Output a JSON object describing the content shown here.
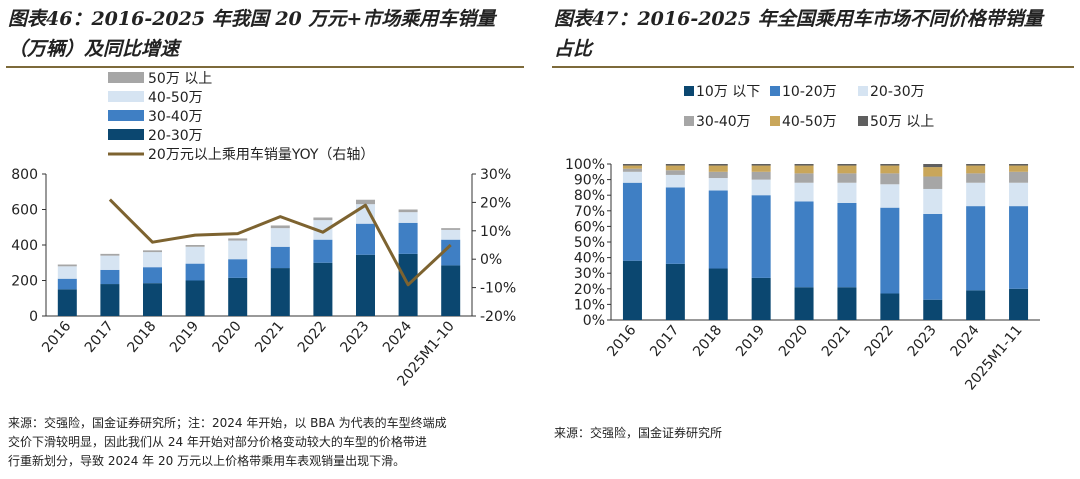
{
  "left_panel": {
    "title_line1": "图表46：2016-2025 年我国 20 万元+市场乘用车销量",
    "title_line2": "（万辆）及同比增速",
    "source_line1": "来源：交强险，国金证券研究所；注：2024 年开始，以 BBA 为代表的车型终端成",
    "source_line2": "交价下滑较明显，因此我们从 24 年开始对部分价格变动较大的车型的价格带进",
    "source_line3": "行重新划分，导致 2024 年 20 万元以上价格带乘用车表观销量出现下滑。"
  },
  "right_panel": {
    "title_line1": "图表47：2016-2025 年全国乘用车市场不同价格带销量",
    "title_line2": "占比",
    "source": "来源：交强险，国金证券研究所"
  },
  "colors": {
    "band_50_plus": "#a6a6a6",
    "band_40_50": "#d6e4f2",
    "band_30_40": "#3f7fc4",
    "band_20_30": "#0b4770",
    "yoy_line": "#7d6330",
    "below_10": "#0b4770",
    "band_10_20": "#3f7fc4",
    "band_20_30_light": "#d6e4f2",
    "band_30_40_gray": "#a6a6a6",
    "band_40_50_gold": "#c9a65a",
    "band_50_plus_dark": "#5f5f5f"
  },
  "chart_data": [
    {
      "type": "bar",
      "stacked": true,
      "categories": [
        "2016",
        "2017",
        "2018",
        "2019",
        "2020",
        "2021",
        "2022",
        "2023",
        "2024",
        "2025M1-10"
      ],
      "series": [
        {
          "name": "20-30万",
          "values": [
            150,
            180,
            185,
            200,
            215,
            270,
            300,
            345,
            350,
            285
          ]
        },
        {
          "name": "30-40万",
          "values": [
            60,
            80,
            90,
            95,
            105,
            120,
            130,
            175,
            175,
            145
          ]
        },
        {
          "name": "40-50万",
          "values": [
            70,
            80,
            85,
            95,
            105,
            105,
            110,
            110,
            60,
            55
          ]
        },
        {
          "name": "50万 以上",
          "values": [
            10,
            10,
            10,
            10,
            12,
            15,
            15,
            25,
            15,
            10
          ]
        }
      ],
      "line_series": {
        "name": "20万元以上乘用车销量YOY（右轴）",
        "values": [
          null,
          21,
          6,
          8.5,
          9,
          15,
          9.5,
          19,
          -9,
          5
        ]
      },
      "legend": [
        "50万 以上",
        "40-50万",
        "30-40万",
        "20-30万",
        "20万元以上乘用车销量YOY（右轴）"
      ],
      "y_ticks": [
        "0",
        "200",
        "400",
        "600",
        "800"
      ],
      "y2_ticks": [
        "-20%",
        "-10%",
        "0%",
        "10%",
        "20%",
        "30%"
      ],
      "ylim": [
        0,
        800
      ],
      "y2lim": [
        -20,
        30
      ]
    },
    {
      "type": "bar",
      "stacked": true,
      "percent": true,
      "categories": [
        "2016",
        "2017",
        "2018",
        "2019",
        "2020",
        "2021",
        "2022",
        "2023",
        "2024",
        "2025M1-11"
      ],
      "series": [
        {
          "name": "10万 以下",
          "values": [
            38,
            36,
            33,
            27,
            21,
            21,
            17,
            13,
            19,
            20
          ]
        },
        {
          "name": "10-20万",
          "values": [
            50,
            49,
            50,
            53,
            55,
            54,
            55,
            55,
            54,
            53
          ]
        },
        {
          "name": "20-30万",
          "values": [
            7,
            8,
            8,
            10,
            12,
            13,
            15,
            16,
            15,
            15
          ]
        },
        {
          "name": "30-40万",
          "values": [
            2,
            3,
            4,
            5,
            6,
            6,
            7,
            8,
            6,
            7
          ]
        },
        {
          "name": "40-50万",
          "values": [
            2,
            3,
            4,
            4,
            5,
            5,
            5,
            6,
            5,
            4
          ]
        },
        {
          "name": "50万 以上",
          "values": [
            1,
            1,
            1,
            1,
            1,
            1,
            1,
            2,
            1,
            1
          ]
        }
      ],
      "legend": [
        "10万 以下",
        "10-20万",
        "20-30万",
        "30-40万",
        "40-50万",
        "50万 以上"
      ],
      "y_ticks": [
        "0%",
        "10%",
        "20%",
        "30%",
        "40%",
        "50%",
        "60%",
        "70%",
        "80%",
        "90%",
        "100%"
      ],
      "ylim": [
        0,
        100
      ]
    }
  ]
}
